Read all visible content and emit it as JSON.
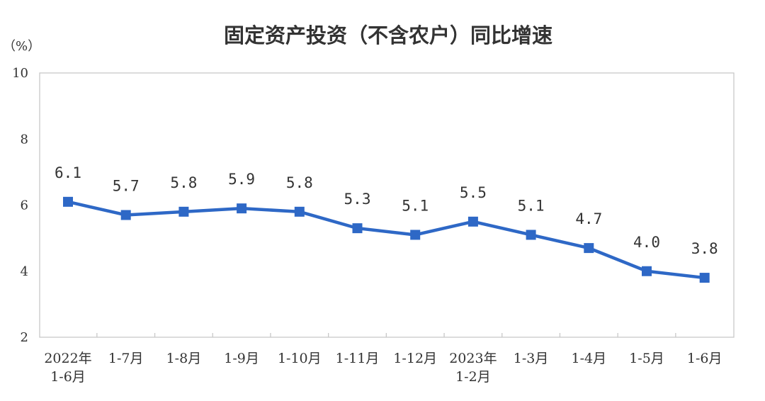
{
  "chart_data": {
    "type": "line",
    "title": "固定资产投资（不含农户）同比增速",
    "ylabel": "（%）",
    "xlabel": "",
    "ylim": [
      2,
      10
    ],
    "yticks": [
      2,
      4,
      6,
      8,
      10
    ],
    "grid": false,
    "categories": [
      [
        "2022年",
        "1-6月"
      ],
      [
        "1-7月"
      ],
      [
        "1-8月"
      ],
      [
        "1-9月"
      ],
      [
        "1-10月"
      ],
      [
        "1-11月"
      ],
      [
        "1-12月"
      ],
      [
        "2023年",
        "1-2月"
      ],
      [
        "1-3月"
      ],
      [
        "1-4月"
      ],
      [
        "1-5月"
      ],
      [
        "1-6月"
      ]
    ],
    "series": [
      {
        "values": [
          6.1,
          5.7,
          5.8,
          5.9,
          5.8,
          5.3,
          5.1,
          5.5,
          5.1,
          4.7,
          4.0,
          3.8
        ],
        "labels": [
          "6.1",
          "5.7",
          "5.8",
          "5.9",
          "5.8",
          "5.3",
          "5.1",
          "5.5",
          "5.1",
          "4.7",
          "4.0",
          "3.8"
        ],
        "color": "#2e68c6",
        "marker": "square"
      }
    ],
    "axis_color": "#c8c8c8",
    "text_color": "#333333"
  }
}
